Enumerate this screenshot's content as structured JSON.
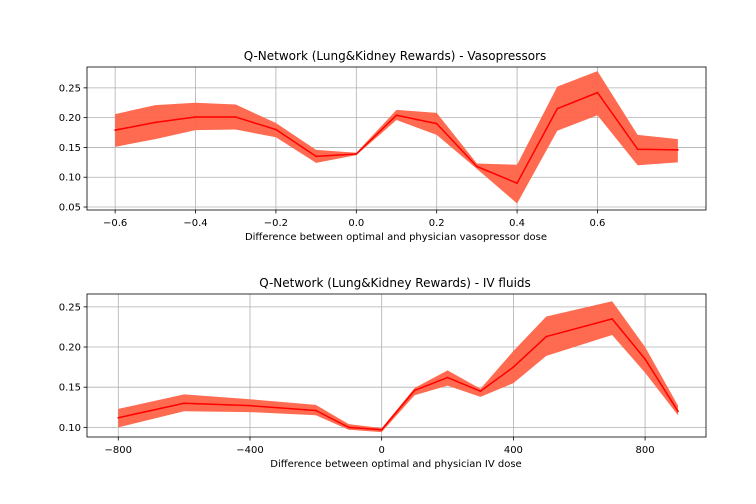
{
  "figure_background": "#ffffff",
  "colors": {
    "band": "#ff6347",
    "band_opacity": 0.95,
    "line": "#ff0000",
    "grid": "#b0b0b0"
  },
  "chart_data": [
    {
      "type": "line",
      "title": "Q-Network (Lung&Kidney Rewards) - Vasopressors",
      "xlabel": "Difference between optimal and physician vasopressor dose",
      "ylabel": "",
      "grid": true,
      "xlim": [
        -0.67,
        0.87
      ],
      "ylim": [
        0.045,
        0.285
      ],
      "xticks": [
        -0.6,
        -0.4,
        -0.2,
        0.0,
        0.2,
        0.4,
        0.6
      ],
      "xtick_labels": [
        "−0.6",
        "−0.4",
        "−0.2",
        "0.0",
        "0.2",
        "0.4",
        "0.6"
      ],
      "yticks": [
        0.05,
        0.1,
        0.15,
        0.2,
        0.25
      ],
      "ytick_labels": [
        "0.05",
        "0.10",
        "0.15",
        "0.20",
        "0.25"
      ],
      "series": [
        {
          "x": [
            -0.6,
            -0.5,
            -0.4,
            -0.3,
            -0.2,
            -0.1,
            0.0,
            0.1,
            0.2,
            0.3,
            0.4,
            0.5,
            0.6,
            0.7,
            0.8
          ],
          "mean": [
            0.179,
            0.192,
            0.201,
            0.201,
            0.18,
            0.135,
            0.139,
            0.204,
            0.19,
            0.118,
            0.09,
            0.215,
            0.242,
            0.147,
            0.146
          ],
          "lower": [
            0.151,
            0.164,
            0.179,
            0.18,
            0.167,
            0.124,
            0.137,
            0.196,
            0.171,
            0.114,
            0.056,
            0.178,
            0.204,
            0.12,
            0.125
          ],
          "upper": [
            0.206,
            0.221,
            0.225,
            0.222,
            0.191,
            0.146,
            0.141,
            0.213,
            0.208,
            0.123,
            0.121,
            0.252,
            0.278,
            0.171,
            0.164
          ]
        }
      ]
    },
    {
      "type": "line",
      "title": "Q-Network (Lung&Kidney Rewards) - IV fluids",
      "xlabel": "Difference between optimal and physician IV dose",
      "ylabel": "",
      "grid": true,
      "xlim": [
        -895,
        985
      ],
      "ylim": [
        0.088,
        0.266
      ],
      "xticks": [
        -800,
        -400,
        0,
        400,
        800
      ],
      "xtick_labels": [
        "−800",
        "−400",
        "0",
        "400",
        "800"
      ],
      "yticks": [
        0.1,
        0.15,
        0.2,
        0.25
      ],
      "ytick_labels": [
        "0.10",
        "0.15",
        "0.20",
        "0.25"
      ],
      "series": [
        {
          "x": [
            -800,
            -600,
            -400,
            -200,
            -100,
            0,
            100,
            200,
            300,
            400,
            500,
            700,
            800,
            900
          ],
          "mean": [
            0.112,
            0.13,
            0.127,
            0.121,
            0.1,
            0.097,
            0.146,
            0.162,
            0.145,
            0.175,
            0.213,
            0.235,
            0.185,
            0.12
          ],
          "lower": [
            0.1,
            0.12,
            0.119,
            0.115,
            0.097,
            0.094,
            0.14,
            0.152,
            0.138,
            0.155,
            0.189,
            0.215,
            0.168,
            0.115
          ],
          "upper": [
            0.123,
            0.141,
            0.135,
            0.128,
            0.104,
            0.099,
            0.149,
            0.171,
            0.148,
            0.195,
            0.238,
            0.257,
            0.2,
            0.127
          ]
        }
      ]
    }
  ]
}
